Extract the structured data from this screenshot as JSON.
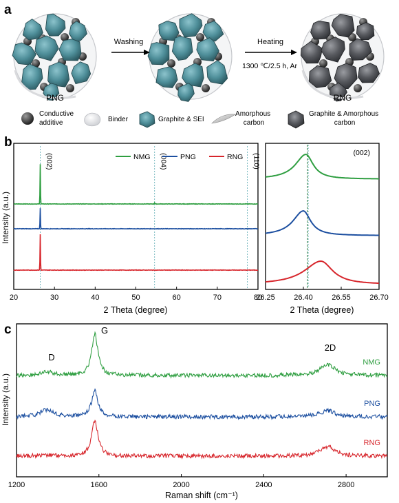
{
  "panels": {
    "a": "a",
    "b": "b",
    "c": "c"
  },
  "schematic": {
    "samples": [
      "PNG",
      "RNG"
    ],
    "step1": "Washing",
    "step2": "Heating",
    "step2_condition": "1300 ℃/2.5 h, Ar",
    "legend": [
      {
        "icon": "conductive-additive-icon",
        "label_lines": [
          "Conductive",
          "additive"
        ]
      },
      {
        "icon": "binder-icon",
        "label_lines": [
          "Binder"
        ]
      },
      {
        "icon": "graphite-sei-icon",
        "label_lines": [
          "Graphite & SEI"
        ]
      },
      {
        "icon": "amorphous-carbon-icon",
        "label_lines": [
          "Amorphous",
          "carbon"
        ]
      },
      {
        "icon": "graphite-amorphous-carbon-icon",
        "label_lines": [
          "Graphite & Amorphous",
          "carbon"
        ]
      }
    ],
    "colors": {
      "sei": "#4f8f9a",
      "graphite": "#56585d",
      "binder": "#e6e7ea"
    }
  },
  "chart_data": [
    {
      "id": "xrd",
      "type": "line",
      "xlabel": "2 Theta (degree)",
      "ylabel": "Intensity (a.u.)",
      "xlim": [
        20,
        80
      ],
      "xticks": [
        20,
        30,
        40,
        50,
        60,
        70,
        80
      ],
      "legend_position": "top",
      "peaks": [
        {
          "label": "(002)",
          "x": 26.5
        },
        {
          "label": "(004)",
          "x": 54.6
        },
        {
          "label": "(110)",
          "x": 77.4
        }
      ],
      "series": [
        {
          "name": "NMG",
          "color": "#2e9e40",
          "points": [
            [
              20,
              0
            ],
            [
              26.3,
              0
            ],
            [
              26.5,
              1.0
            ],
            [
              26.7,
              0
            ],
            [
              54.4,
              0
            ],
            [
              54.6,
              0.03
            ],
            [
              54.8,
              0
            ],
            [
              80,
              0
            ]
          ]
        },
        {
          "name": "PNG",
          "color": "#1c4fa0",
          "points": [
            [
              20,
              0
            ],
            [
              26.3,
              0
            ],
            [
              26.5,
              1.0
            ],
            [
              26.7,
              0
            ],
            [
              80,
              0
            ]
          ]
        },
        {
          "name": "RNG",
          "color": "#d7252b",
          "points": [
            [
              20,
              0
            ],
            [
              26.3,
              0
            ],
            [
              26.5,
              1.0
            ],
            [
              26.7,
              0
            ],
            [
              80,
              0
            ]
          ]
        }
      ]
    },
    {
      "id": "xrd-zoom",
      "type": "line",
      "title": "(002)",
      "xlabel": "2 Theta (degree)",
      "xlim": [
        26.25,
        26.7
      ],
      "xticks": [
        "26.25",
        "26.40",
        "26.55",
        "26.70"
      ],
      "xtick_values": [
        26.25,
        26.4,
        26.55,
        26.7
      ],
      "reference_x": 26.415,
      "series": [
        {
          "name": "NMG",
          "color": "#2e9e40",
          "center": 26.41,
          "width": 0.05,
          "height": 0.9,
          "base": 0.2
        },
        {
          "name": "PNG",
          "color": "#1c4fa0",
          "center": 26.4,
          "width": 0.05,
          "height": 0.9,
          "base": 0.1
        },
        {
          "name": "RNG",
          "color": "#d7252b",
          "center": 26.47,
          "width": 0.08,
          "height": 0.85,
          "base": 0.05
        }
      ]
    },
    {
      "id": "raman",
      "type": "line",
      "xlabel": "Raman shift (cm⁻¹)",
      "ylabel": "Intensity (a.u.)",
      "xlim": [
        1200,
        3000
      ],
      "xticks": [
        1200,
        1600,
        2000,
        2400,
        2800
      ],
      "bands": [
        {
          "label": "D",
          "x": 1350
        },
        {
          "label": "G",
          "x": 1580
        },
        {
          "label": "2D",
          "x": 2710
        }
      ],
      "series": [
        {
          "name": "NMG",
          "color": "#2e9e40",
          "band_heights": {
            "D": 0.08,
            "G": 1.0,
            "2D": 0.26
          }
        },
        {
          "name": "PNG",
          "color": "#1c4fa0",
          "band_heights": {
            "D": 0.2,
            "G": 0.72,
            "2D": 0.17
          }
        },
        {
          "name": "RNG",
          "color": "#d7252b",
          "band_heights": {
            "D": 0.03,
            "G": 0.9,
            "2D": 0.23
          }
        }
      ]
    }
  ]
}
